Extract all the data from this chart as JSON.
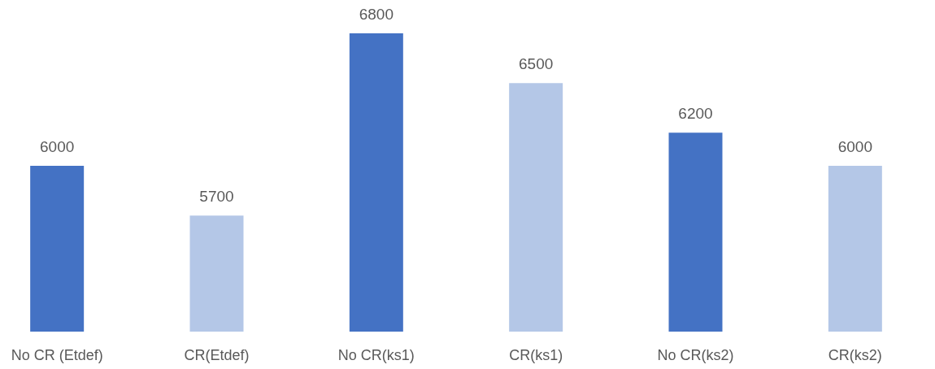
{
  "chart_data": {
    "type": "bar",
    "categories": [
      "No CR (Etdef)",
      "CR(Etdef)",
      "No CR(ks1)",
      "CR(ks1)",
      "No CR(ks2)",
      "CR(ks2)"
    ],
    "values": [
      6000,
      5700,
      6800,
      6500,
      6200,
      6000
    ],
    "colors": [
      "#4472c4",
      "#b4c7e7",
      "#4472c4",
      "#b4c7e7",
      "#4472c4",
      "#b4c7e7"
    ],
    "ylim": [
      5000,
      6800
    ],
    "tick_labels": "x",
    "data_labels": true,
    "grid": false
  }
}
